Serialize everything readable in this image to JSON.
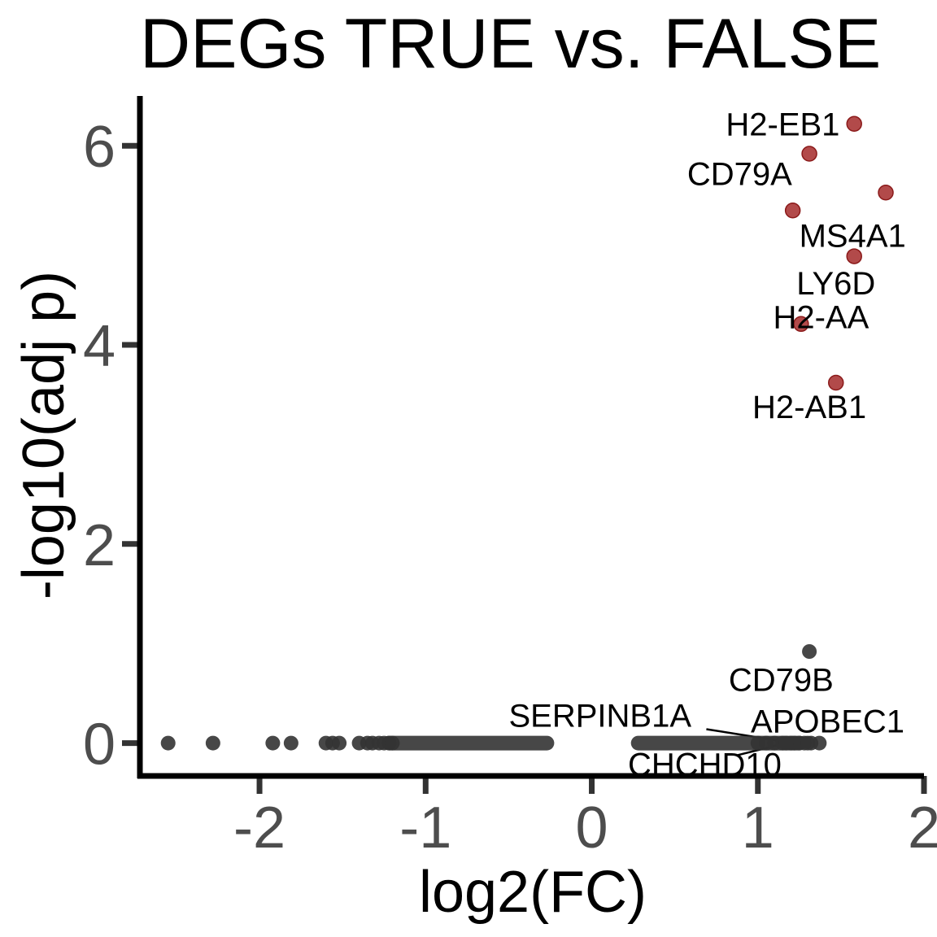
{
  "chart_data": {
    "type": "scatter",
    "title": "DEGs TRUE vs. FALSE",
    "xlabel": "log2(FC)",
    "ylabel": "-log10(adj p)",
    "xlim": [
      -2.72,
      2
    ],
    "ylim": [
      -0.33,
      6.5
    ],
    "x_ticks": [
      -2,
      -1,
      0,
      1,
      2
    ],
    "x_tick_labels": [
      "-2",
      "-1",
      "0",
      "1",
      "2"
    ],
    "y_ticks": [
      0,
      2,
      4,
      6
    ],
    "y_tick_labels": [
      "0",
      "2",
      "4",
      "6"
    ],
    "grid": false,
    "legend": "none",
    "colors": {
      "significant": "#a52a2a",
      "not_significant": "#333333",
      "axis": "#000000"
    },
    "significant": [
      {
        "gene": "H2-EB1",
        "x": 1.58,
        "y": 6.22
      },
      {
        "gene": "CD79A",
        "x": 1.31,
        "y": 5.92
      },
      {
        "gene": "MS4A1",
        "x": 1.77,
        "y": 5.53
      },
      {
        "gene": "",
        "x": 1.21,
        "y": 5.35
      },
      {
        "gene": "LY6D",
        "x": 1.58,
        "y": 4.89
      },
      {
        "gene": "H2-AA",
        "x": 1.26,
        "y": 4.21
      },
      {
        "gene": "H2-AB1",
        "x": 1.47,
        "y": 3.62
      }
    ],
    "not_significant_labeled": [
      {
        "gene": "CD79B",
        "x": 1.31,
        "y": 0.92
      },
      {
        "gene": "SERPINB1A",
        "x": 1.22,
        "y": 0
      },
      {
        "gene": "APOBEC1",
        "x": 1.3,
        "y": 0
      },
      {
        "gene": "CHCHD10",
        "x": 1.17,
        "y": 0
      }
    ],
    "not_significant": {
      "y": 0,
      "x": [
        -2.55,
        -2.28,
        -1.92,
        -1.81,
        -1.6,
        -1.56,
        -1.52,
        -1.4,
        -1.35,
        -1.32,
        -1.28,
        -1.25,
        -1.22,
        -1.2,
        1.0,
        1.05,
        1.1,
        1.15,
        1.2,
        1.25,
        1.28,
        1.32,
        1.37
      ],
      "dense_ranges": [
        [
          -1.22,
          -0.27
        ],
        [
          0.28,
          1.25
        ]
      ]
    },
    "label_text_positions": {
      "H2-EB1": [
        1.15,
        6.22
      ],
      "CD79A": [
        0.89,
        5.72
      ],
      "MS4A1": [
        1.57,
        5.1
      ],
      "LY6D": [
        1.47,
        4.62
      ],
      "H2-AA": [
        1.38,
        4.28
      ],
      "H2-AB1": [
        1.31,
        3.38
      ],
      "CD79B": [
        1.14,
        0.64
      ],
      "SERPINB1A": [
        0.05,
        0.28
      ],
      "APOBEC1": [
        1.42,
        0.22
      ],
      "CHCHD10": [
        0.68,
        -0.21
      ]
    }
  }
}
